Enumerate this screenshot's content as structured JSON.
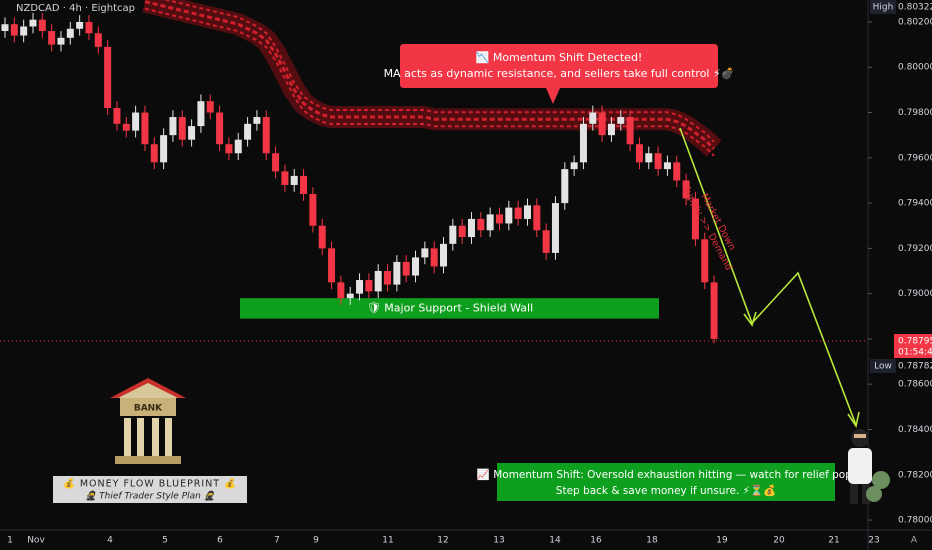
{
  "chart_data": {
    "type": "candlestick",
    "symbol": "NZDCAD · 4h · Eightcap",
    "up_color": "#e3e3e3",
    "down_color": "#f23645",
    "ma_color": "#d0202c",
    "ylim": [
      0.77956,
      0.80297
    ],
    "yticks": [
      {
        "value": 0.802,
        "label": "0.80200"
      },
      {
        "value": 0.8,
        "label": "0.80000"
      },
      {
        "value": 0.798,
        "label": "0.79800"
      },
      {
        "value": 0.796,
        "label": "0.79600"
      },
      {
        "value": 0.794,
        "label": "0.79400"
      },
      {
        "value": 0.792,
        "label": "0.79200"
      },
      {
        "value": 0.79,
        "label": "0.79000"
      },
      {
        "value": 0.788,
        "label": "0.78800"
      },
      {
        "value": 0.786,
        "label": "0.78600"
      },
      {
        "value": 0.784,
        "label": "0.78400"
      },
      {
        "value": 0.782,
        "label": "0.78200"
      },
      {
        "value": 0.78,
        "label": "0.78000"
      }
    ],
    "x_labels": [
      "1",
      "Nov",
      "4",
      "5",
      "6",
      "7",
      "9",
      "11",
      "12",
      "13",
      "14",
      "16",
      "18",
      "19",
      "20",
      "21",
      "23"
    ],
    "ohlc": [
      [
        0.8016,
        0.8022,
        0.8013,
        0.8019
      ],
      [
        0.8019,
        0.8022,
        0.8011,
        0.8014
      ],
      [
        0.8014,
        0.8021,
        0.8011,
        0.8018
      ],
      [
        0.8018,
        0.8024,
        0.8015,
        0.8021
      ],
      [
        0.8021,
        0.8024,
        0.8013,
        0.8016
      ],
      [
        0.8016,
        0.8019,
        0.8007,
        0.801
      ],
      [
        0.801,
        0.8016,
        0.8007,
        0.8013
      ],
      [
        0.8013,
        0.802,
        0.801,
        0.8017
      ],
      [
        0.8017,
        0.8023,
        0.8014,
        0.802
      ],
      [
        0.802,
        0.8023,
        0.8012,
        0.8015
      ],
      [
        0.8015,
        0.8018,
        0.8006,
        0.8009
      ],
      [
        0.8009,
        0.8012,
        0.7979,
        0.7982
      ],
      [
        0.7982,
        0.7985,
        0.7972,
        0.7975
      ],
      [
        0.7975,
        0.7978,
        0.7969,
        0.7972
      ],
      [
        0.7972,
        0.7983,
        0.7969,
        0.798
      ],
      [
        0.798,
        0.7983,
        0.7963,
        0.7966
      ],
      [
        0.7966,
        0.7969,
        0.7955,
        0.7958
      ],
      [
        0.7958,
        0.7973,
        0.7955,
        0.797
      ],
      [
        0.797,
        0.7981,
        0.7967,
        0.7978
      ],
      [
        0.7978,
        0.7981,
        0.7965,
        0.7968
      ],
      [
        0.7968,
        0.7977,
        0.7965,
        0.7974
      ],
      [
        0.7974,
        0.7988,
        0.7971,
        0.7985
      ],
      [
        0.7985,
        0.7988,
        0.7977,
        0.798
      ],
      [
        0.798,
        0.7983,
        0.7963,
        0.7966
      ],
      [
        0.7966,
        0.7969,
        0.7959,
        0.7962
      ],
      [
        0.7962,
        0.7971,
        0.7959,
        0.7968
      ],
      [
        0.7968,
        0.7978,
        0.7965,
        0.7975
      ],
      [
        0.7975,
        0.7981,
        0.7972,
        0.7978
      ],
      [
        0.7978,
        0.7981,
        0.7959,
        0.7962
      ],
      [
        0.7962,
        0.7965,
        0.7951,
        0.7954
      ],
      [
        0.7954,
        0.7957,
        0.7945,
        0.7948
      ],
      [
        0.7948,
        0.7955,
        0.7945,
        0.7952
      ],
      [
        0.7952,
        0.7955,
        0.7941,
        0.7944
      ],
      [
        0.7944,
        0.7947,
        0.7927,
        0.793
      ],
      [
        0.793,
        0.7933,
        0.7917,
        0.792
      ],
      [
        0.792,
        0.7923,
        0.7902,
        0.7905
      ],
      [
        0.7905,
        0.7908,
        0.7895,
        0.7898
      ],
      [
        0.7898,
        0.7903,
        0.7895,
        0.79
      ],
      [
        0.79,
        0.7909,
        0.7897,
        0.7906
      ],
      [
        0.7906,
        0.7909,
        0.7898,
        0.7901
      ],
      [
        0.7901,
        0.7913,
        0.7898,
        0.791
      ],
      [
        0.791,
        0.7913,
        0.7901,
        0.7904
      ],
      [
        0.7904,
        0.7917,
        0.7901,
        0.7914
      ],
      [
        0.7914,
        0.7917,
        0.7905,
        0.7908
      ],
      [
        0.7908,
        0.7919,
        0.7905,
        0.7916
      ],
      [
        0.7916,
        0.7923,
        0.7913,
        0.792
      ],
      [
        0.792,
        0.7923,
        0.7909,
        0.7912
      ],
      [
        0.7912,
        0.7925,
        0.7909,
        0.7922
      ],
      [
        0.7922,
        0.7933,
        0.7919,
        0.793
      ],
      [
        0.793,
        0.7933,
        0.7922,
        0.7925
      ],
      [
        0.7925,
        0.7936,
        0.7922,
        0.7933
      ],
      [
        0.7933,
        0.7936,
        0.7925,
        0.7928
      ],
      [
        0.7928,
        0.7938,
        0.7925,
        0.7935
      ],
      [
        0.7935,
        0.7938,
        0.7928,
        0.7931
      ],
      [
        0.7931,
        0.7941,
        0.7928,
        0.7938
      ],
      [
        0.7938,
        0.7941,
        0.793,
        0.7933
      ],
      [
        0.7933,
        0.7942,
        0.793,
        0.7939
      ],
      [
        0.7939,
        0.7942,
        0.7925,
        0.7928
      ],
      [
        0.7928,
        0.7931,
        0.7915,
        0.7918
      ],
      [
        0.7918,
        0.7943,
        0.7915,
        0.794
      ],
      [
        0.794,
        0.7958,
        0.7937,
        0.7955
      ],
      [
        0.7955,
        0.7961,
        0.7952,
        0.7958
      ],
      [
        0.7958,
        0.7978,
        0.7955,
        0.7975
      ],
      [
        0.7975,
        0.7983,
        0.7972,
        0.798
      ],
      [
        0.798,
        0.7983,
        0.7967,
        0.797
      ],
      [
        0.797,
        0.7978,
        0.7967,
        0.7975
      ],
      [
        0.7975,
        0.7981,
        0.7972,
        0.7978
      ],
      [
        0.7978,
        0.7981,
        0.7963,
        0.7966
      ],
      [
        0.7966,
        0.7969,
        0.7955,
        0.7958
      ],
      [
        0.7958,
        0.7965,
        0.7955,
        0.7962
      ],
      [
        0.7962,
        0.7965,
        0.7952,
        0.7955
      ],
      [
        0.7955,
        0.7961,
        0.7952,
        0.7958
      ],
      [
        0.7958,
        0.7961,
        0.7947,
        0.795
      ],
      [
        0.795,
        0.7953,
        0.7939,
        0.7942
      ],
      [
        0.7942,
        0.7945,
        0.7921,
        0.7924
      ],
      [
        0.7924,
        0.7927,
        0.7902,
        0.7905
      ],
      [
        0.7905,
        0.7908,
        0.7878,
        0.788
      ]
    ],
    "ma": [
      null,
      null,
      null,
      null,
      null,
      null,
      null,
      null,
      null,
      null,
      null,
      null,
      null,
      null,
      null,
      0.8029,
      0.8028,
      0.8027,
      0.8026,
      0.8025,
      0.8024,
      0.8023,
      0.8022,
      0.8021,
      0.802,
      0.8019,
      0.8017,
      0.8015,
      0.8012,
      0.8006,
      0.7998,
      0.799,
      0.7984,
      0.7981,
      0.7979,
      0.7978,
      0.7978,
      0.7978,
      0.7978,
      0.7978,
      0.7978,
      0.7978,
      0.7978,
      0.7978,
      0.7978,
      0.7978,
      0.7977,
      0.7977,
      0.7977,
      0.7977,
      0.7977,
      0.7977,
      0.7977,
      0.7977,
      0.7977,
      0.7977,
      0.7977,
      0.7977,
      0.7977,
      0.7977,
      0.7977,
      0.7977,
      0.7977,
      0.7977,
      0.7977,
      0.7977,
      0.7977,
      0.7977,
      0.7977,
      0.7977,
      0.7977,
      0.7977,
      0.7976,
      0.7974,
      0.7971,
      0.7968,
      0.7964
    ],
    "support_zone": [
      0.7889,
      0.7898
    ],
    "price_tags": {
      "high_label": "High",
      "high_value": "0.80322",
      "last_value": "0.78795",
      "countdown": "01:54:40",
      "low_label": "Low",
      "low_value": "0.78782"
    },
    "annotations": {
      "callout_title": "📉 Momentum Shift Detected!",
      "callout_text": "MA acts as dynamic resistance, and sellers take full control ⚡💣",
      "trend_line1": "Market Down",
      "trend_line2": "Supply >> Demand",
      "support_label": "🛡 Major Support - Shield Wall",
      "note_line1": "📈 Momentum Shift: Oversold exhaustion hitting — watch for relief pop.",
      "note_line2": "Step back & save money if unsure. ⚡⏳💰",
      "bank": "BANK",
      "blueprint_title": "💰 MONEY FLOW BLUEPRINT 💰",
      "blueprint_sub": "🥷 Thief Trader Style Plan 🥷",
      "scale_mode": "A"
    }
  }
}
